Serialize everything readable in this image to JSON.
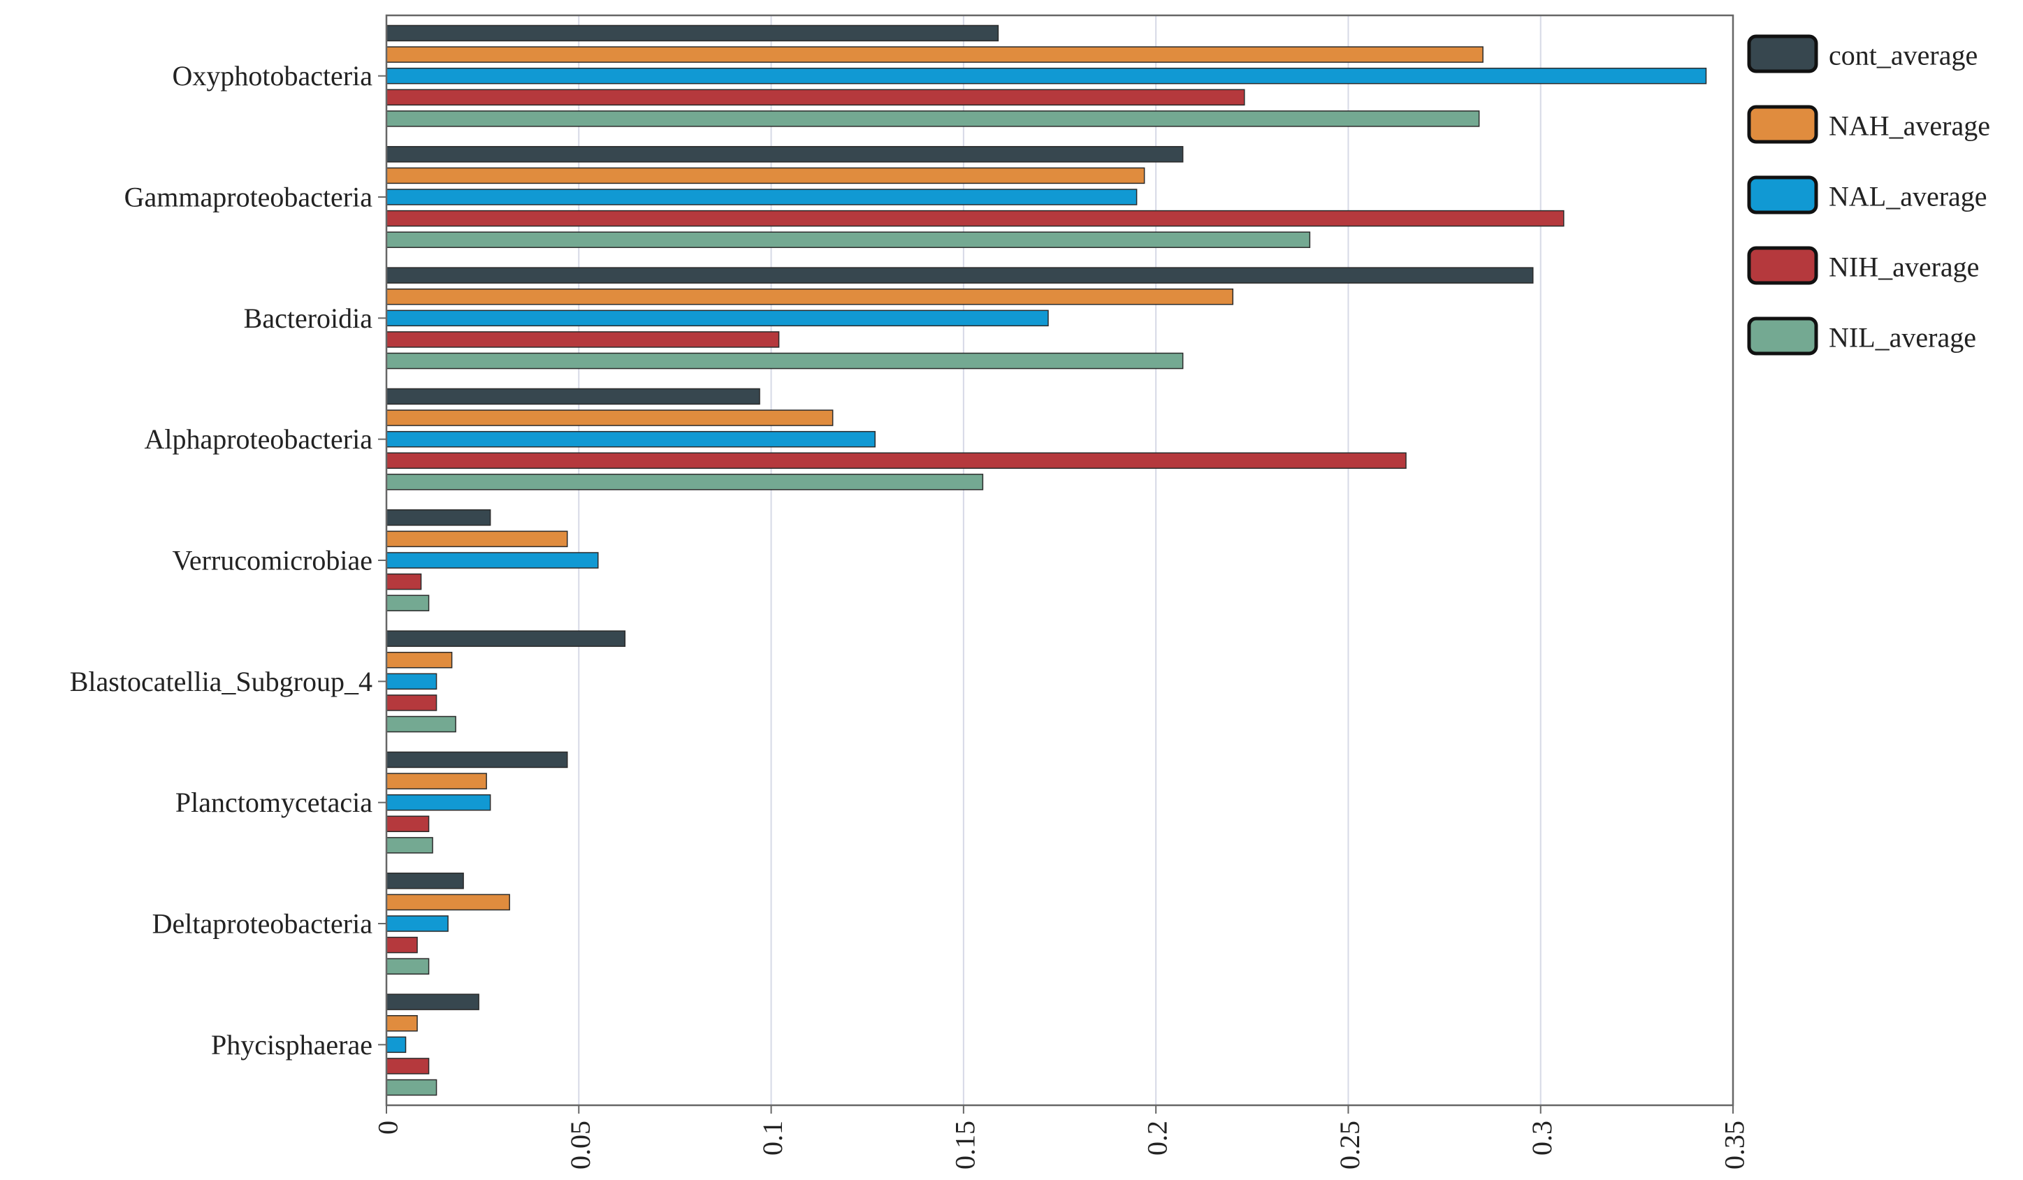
{
  "chart_data": {
    "type": "bar",
    "orientation": "horizontal",
    "title": "",
    "xlabel": "",
    "ylabel": "",
    "xlim": [
      0,
      0.35
    ],
    "x_ticks": [
      "0",
      "0.05",
      "0.1",
      "0.15",
      "0.2",
      "0.25",
      "0.3",
      "0.35"
    ],
    "grid": "vertical",
    "legend_position": "right",
    "categories": [
      "Oxyphotobacteria",
      "Gammaproteobacteria",
      "Bacteroidia",
      "Alphaproteobacteria",
      "Verrucomicrobiae",
      "Blastocatellia_Subgroup_4",
      "Planctomycetacia",
      "Deltaproteobacteria",
      "Phycisphaerae"
    ],
    "series": [
      {
        "name": "cont_average",
        "color": "#37474f",
        "values": [
          0.159,
          0.207,
          0.298,
          0.097,
          0.027,
          0.062,
          0.047,
          0.02,
          0.024
        ]
      },
      {
        "name": "NAH_average",
        "color": "#e08c3e",
        "values": [
          0.285,
          0.197,
          0.22,
          0.116,
          0.047,
          0.017,
          0.026,
          0.032,
          0.008
        ]
      },
      {
        "name": "NAL_average",
        "color": "#1199d3",
        "values": [
          0.343,
          0.195,
          0.172,
          0.127,
          0.055,
          0.013,
          0.027,
          0.016,
          0.005
        ]
      },
      {
        "name": "NIH_average",
        "color": "#b5393d",
        "values": [
          0.223,
          0.306,
          0.102,
          0.265,
          0.009,
          0.013,
          0.011,
          0.008,
          0.011
        ]
      },
      {
        "name": "NIL_average",
        "color": "#74a992",
        "values": [
          0.284,
          0.24,
          0.207,
          0.155,
          0.011,
          0.018,
          0.012,
          0.011,
          0.013
        ]
      }
    ]
  }
}
